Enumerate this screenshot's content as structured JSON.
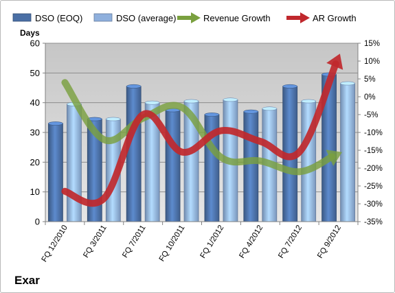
{
  "chart_data": {
    "type": "bar",
    "title": "",
    "company": "Exar",
    "categories": [
      "FQ 12/2010",
      "FQ 3/2011",
      "FQ 7/2011",
      "FQ 10/2011",
      "FQ 1/2012",
      "FQ 4/2012",
      "FQ 7/2012",
      "FQ 9/2012"
    ],
    "left_axis": {
      "label": "Days",
      "min": 0,
      "max": 60,
      "step": 10
    },
    "right_axis": {
      "label": "",
      "min": -35,
      "max": 15,
      "step": 5,
      "unit": "%"
    },
    "bar_series": [
      {
        "name": "DSO (EOQ)",
        "color": "#4a6fa5",
        "values": [
          33,
          34.5,
          45.5,
          37.5,
          36,
          37,
          45.5,
          49.5
        ]
      },
      {
        "name": "DSO (average)",
        "color": "#8fb0dd",
        "values": [
          39.5,
          34.5,
          40,
          40.5,
          41,
          38,
          40.5,
          46.5
        ]
      }
    ],
    "line_series": [
      {
        "name": "Revenue Growth",
        "color": "#7aa03f",
        "values": [
          4,
          -12,
          -6,
          -3,
          -17,
          -18,
          -21,
          -16
        ]
      },
      {
        "name": "AR Growth",
        "color": "#c0282d",
        "values": [
          -26.5,
          -28.5,
          -5,
          -15.5,
          -9.5,
          -12.5,
          -15.5,
          11
        ]
      }
    ],
    "grid": true,
    "legend_position": "top"
  }
}
